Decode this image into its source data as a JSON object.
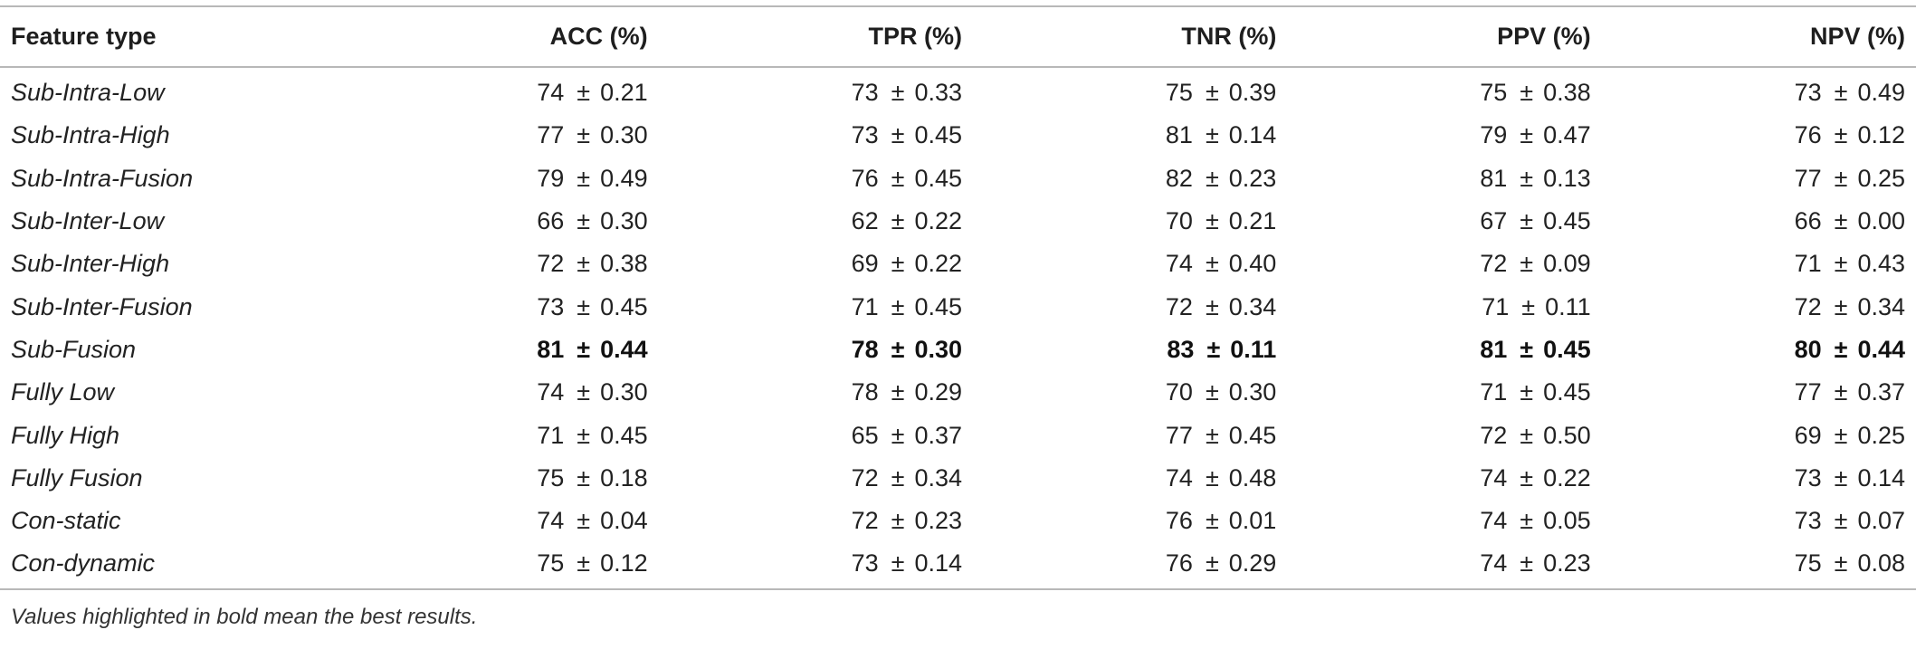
{
  "table": {
    "columns": [
      "Feature type",
      "ACC (%)",
      "TPR (%)",
      "TNR (%)",
      "PPV (%)",
      "NPV (%)"
    ],
    "pm_symbol": "±",
    "rows": [
      {
        "feature": "Sub-Intra-Low",
        "values": [
          {
            "mean": "74",
            "sd": "0.21"
          },
          {
            "mean": "73",
            "sd": "0.33"
          },
          {
            "mean": "75",
            "sd": "0.39"
          },
          {
            "mean": "75",
            "sd": "0.38"
          },
          {
            "mean": "73",
            "sd": "0.49"
          }
        ]
      },
      {
        "feature": "Sub-Intra-High",
        "values": [
          {
            "mean": "77",
            "sd": "0.30"
          },
          {
            "mean": "73",
            "sd": "0.45"
          },
          {
            "mean": "81",
            "sd": "0.14"
          },
          {
            "mean": "79",
            "sd": "0.47"
          },
          {
            "mean": "76",
            "sd": "0.12"
          }
        ]
      },
      {
        "feature": "Sub-Intra-Fusion",
        "values": [
          {
            "mean": "79",
            "sd": "0.49"
          },
          {
            "mean": "76",
            "sd": "0.45"
          },
          {
            "mean": "82",
            "sd": "0.23"
          },
          {
            "mean": "81",
            "sd": "0.13"
          },
          {
            "mean": "77",
            "sd": "0.25"
          }
        ]
      },
      {
        "feature": "Sub-Inter-Low",
        "values": [
          {
            "mean": "66",
            "sd": "0.30"
          },
          {
            "mean": "62",
            "sd": "0.22"
          },
          {
            "mean": "70",
            "sd": "0.21"
          },
          {
            "mean": "67",
            "sd": "0.45"
          },
          {
            "mean": "66",
            "sd": "0.00"
          }
        ]
      },
      {
        "feature": "Sub-Inter-High",
        "values": [
          {
            "mean": "72",
            "sd": "0.38"
          },
          {
            "mean": "69",
            "sd": "0.22"
          },
          {
            "mean": "74",
            "sd": "0.40"
          },
          {
            "mean": "72",
            "sd": "0.09"
          },
          {
            "mean": "71",
            "sd": "0.43"
          }
        ]
      },
      {
        "feature": "Sub-Inter-Fusion",
        "values": [
          {
            "mean": "73",
            "sd": "0.45"
          },
          {
            "mean": "71",
            "sd": "0.45"
          },
          {
            "mean": "72",
            "sd": "0.34"
          },
          {
            "mean": "71",
            "sd": "0.11"
          },
          {
            "mean": "72",
            "sd": "0.34"
          }
        ]
      },
      {
        "feature": "Sub-Fusion",
        "best": true,
        "values": [
          {
            "mean": "81",
            "sd": "0.44"
          },
          {
            "mean": "78",
            "sd": "0.30"
          },
          {
            "mean": "83",
            "sd": "0.11"
          },
          {
            "mean": "81",
            "sd": "0.45"
          },
          {
            "mean": "80",
            "sd": "0.44"
          }
        ]
      },
      {
        "feature": "Fully Low",
        "values": [
          {
            "mean": "74",
            "sd": "0.30"
          },
          {
            "mean": "78",
            "sd": "0.29"
          },
          {
            "mean": "70",
            "sd": "0.30"
          },
          {
            "mean": "71",
            "sd": "0.45"
          },
          {
            "mean": "77",
            "sd": "0.37"
          }
        ]
      },
      {
        "feature": "Fully High",
        "values": [
          {
            "mean": "71",
            "sd": "0.45"
          },
          {
            "mean": "65",
            "sd": "0.37"
          },
          {
            "mean": "77",
            "sd": "0.45"
          },
          {
            "mean": "72",
            "sd": "0.50"
          },
          {
            "mean": "69",
            "sd": "0.25"
          }
        ]
      },
      {
        "feature": "Fully Fusion",
        "values": [
          {
            "mean": "75",
            "sd": "0.18"
          },
          {
            "mean": "72",
            "sd": "0.34"
          },
          {
            "mean": "74",
            "sd": "0.48"
          },
          {
            "mean": "74",
            "sd": "0.22"
          },
          {
            "mean": "73",
            "sd": "0.14"
          }
        ]
      },
      {
        "feature": "Con-static",
        "values": [
          {
            "mean": "74",
            "sd": "0.04"
          },
          {
            "mean": "72",
            "sd": "0.23"
          },
          {
            "mean": "76",
            "sd": "0.01"
          },
          {
            "mean": "74",
            "sd": "0.05"
          },
          {
            "mean": "73",
            "sd": "0.07"
          }
        ]
      },
      {
        "feature": "Con-dynamic",
        "values": [
          {
            "mean": "75",
            "sd": "0.12"
          },
          {
            "mean": "73",
            "sd": "0.14"
          },
          {
            "mean": "76",
            "sd": "0.29"
          },
          {
            "mean": "74",
            "sd": "0.23"
          },
          {
            "mean": "75",
            "sd": "0.08"
          }
        ]
      }
    ]
  },
  "footnote": "Values highlighted in bold mean the best results."
}
